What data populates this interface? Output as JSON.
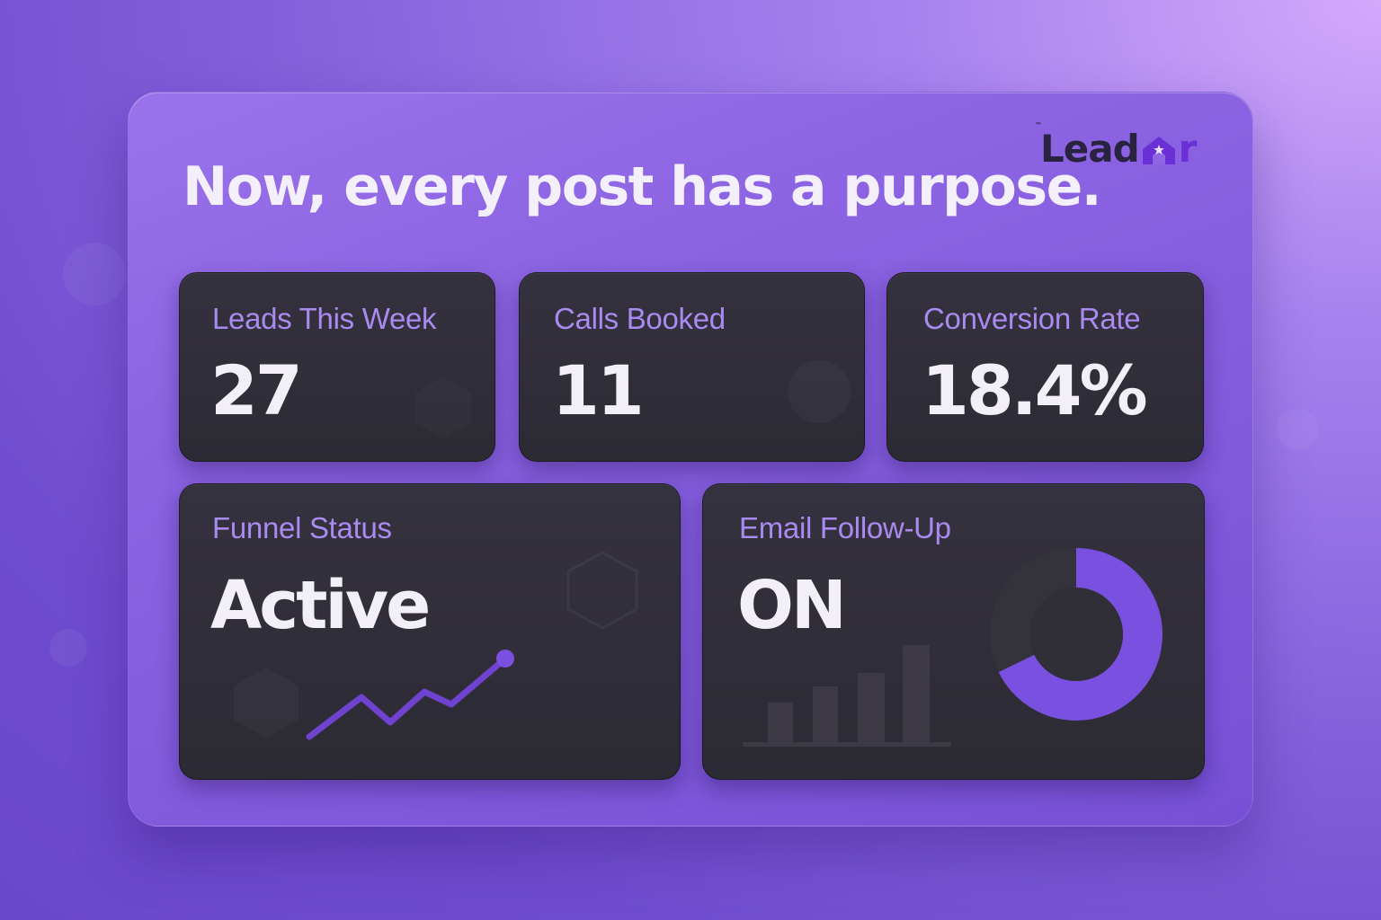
{
  "brand": {
    "tm": "™",
    "name_prefix": "Lead",
    "name_suffix": "r",
    "accent": "#6b2fd6"
  },
  "headline": "Now, every post has a purpose.",
  "metrics": [
    {
      "label": "Leads This Week",
      "value": "27"
    },
    {
      "label": "Calls Booked",
      "value": "11"
    },
    {
      "label": "Conversion Rate",
      "value": "18.4%"
    }
  ],
  "funnel": {
    "label": "Funnel Status",
    "value": "Active",
    "icon": "trend-line-icon"
  },
  "email": {
    "label": "Email Follow-Up",
    "value": "ON",
    "icons": [
      "bar-chart-icon",
      "donut-chart-icon"
    ]
  },
  "colors": {
    "accent": "#7a50e0",
    "card": "#2e2c35",
    "label": "#a98af0",
    "value": "#f2f0f6"
  }
}
